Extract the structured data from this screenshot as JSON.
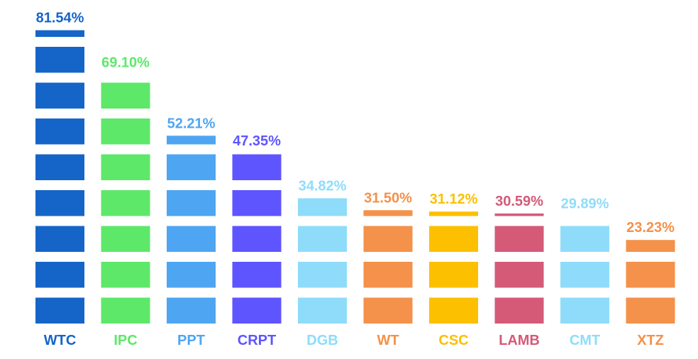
{
  "chart_data": {
    "type": "bar",
    "categories": [
      "WTC",
      "IPC",
      "PPT",
      "CRPT",
      "DGB",
      "WT",
      "CSC",
      "LAMB",
      "CMT",
      "XTZ"
    ],
    "values": [
      81.54,
      69.1,
      52.21,
      47.35,
      34.82,
      31.5,
      31.12,
      30.59,
      29.89,
      23.23
    ],
    "value_labels": [
      "81.54%",
      "69.10%",
      "52.21%",
      "47.35%",
      "34.82%",
      "31.50%",
      "31.12%",
      "30.59%",
      "29.89%",
      "23.23%"
    ],
    "colors": [
      "#1565c8",
      "#5ee86a",
      "#4ea6f2",
      "#5e55ff",
      "#8fdcfa",
      "#f4914a",
      "#fcc000",
      "#d45a78",
      "#8fdcfa",
      "#f4914a"
    ],
    "unit": "%",
    "grid": false,
    "legend": "none",
    "ylim": [
      0,
      85
    ]
  }
}
